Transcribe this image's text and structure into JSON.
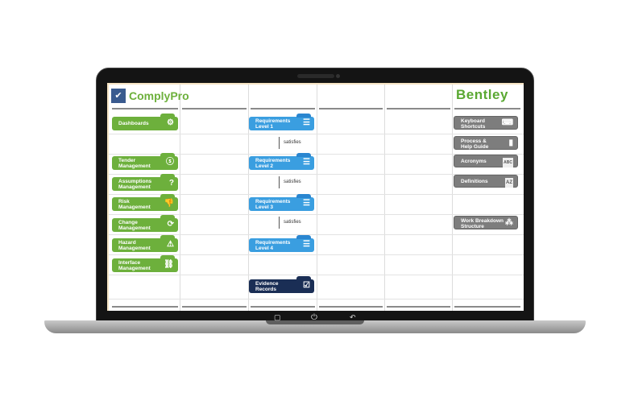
{
  "header": {
    "app_name": "ComplyPro",
    "brand": "Bentley"
  },
  "left_buttons": [
    {
      "label": "Dashboards",
      "icon": "dashboard-icon"
    },
    {
      "label": "Tender Management",
      "icon": "dollar-icon"
    },
    {
      "label": "Assumptions Management",
      "icon": "question-icon"
    },
    {
      "label": "Risk Management",
      "icon": "thumbs-down-icon"
    },
    {
      "label": "Change Management",
      "icon": "refresh-icon"
    },
    {
      "label": "Hazard Management",
      "icon": "warning-icon"
    },
    {
      "label": "Interface Management",
      "icon": "link-icon"
    }
  ],
  "requirements": [
    {
      "label": "Requirements Level 1"
    },
    {
      "label": "Requirements Level 2"
    },
    {
      "label": "Requirements Level 3"
    },
    {
      "label": "Requirements Level 4"
    }
  ],
  "relation_label": "satisfies",
  "evidence": {
    "label": "Evidence Records"
  },
  "right_buttons": [
    {
      "label": "Keyboard Shortcuts",
      "icon": "keyboard-icon"
    },
    {
      "label": "Process & Help Guide",
      "icon": "document-icon"
    },
    {
      "label": "Acronyms",
      "icon": "abc-icon"
    },
    {
      "label": "Definitions",
      "icon": "az-icon"
    },
    {
      "label": "Work Breakdown Structure",
      "icon": "hierarchy-icon"
    }
  ],
  "colors": {
    "green": "#6db03c",
    "blue": "#3a9ee0",
    "navy": "#1a2e55",
    "gray": "#7d7d7d"
  }
}
